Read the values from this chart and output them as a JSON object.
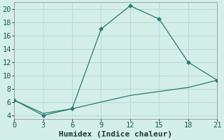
{
  "xlabel": "Humidex (Indice chaleur)",
  "line1_x": [
    0,
    3,
    6,
    9,
    12,
    15,
    18,
    21
  ],
  "line1_y": [
    6.3,
    4.0,
    5.0,
    17.0,
    20.5,
    18.5,
    12.0,
    9.3
  ],
  "line2_x": [
    0,
    3,
    6,
    9,
    12,
    15,
    18,
    21
  ],
  "line2_y": [
    6.3,
    4.3,
    5.0,
    6.0,
    7.0,
    7.6,
    8.2,
    9.3
  ],
  "line_color": "#2a7a6e",
  "bg_color": "#d4eeea",
  "grid_color": "#b8ddd8",
  "xlim": [
    0,
    21
  ],
  "ylim": [
    3.5,
    21
  ],
  "xticks": [
    0,
    3,
    6,
    9,
    12,
    15,
    18,
    21
  ],
  "yticks": [
    4,
    6,
    8,
    10,
    12,
    14,
    16,
    18,
    20
  ],
  "xlabel_fontsize": 8,
  "tick_fontsize": 7.5
}
